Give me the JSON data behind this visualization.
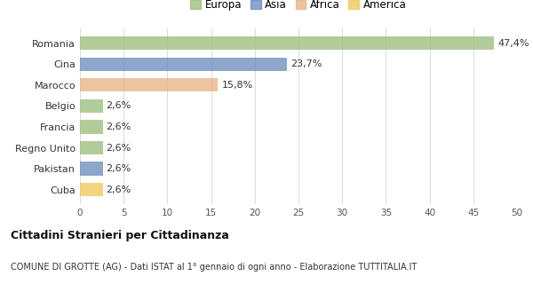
{
  "categories": [
    "Cuba",
    "Pakistan",
    "Regno Unito",
    "Francia",
    "Belgio",
    "Marocco",
    "Cina",
    "Romania"
  ],
  "values": [
    2.6,
    2.6,
    2.6,
    2.6,
    2.6,
    15.8,
    23.7,
    47.4
  ],
  "colors": [
    "#f0c855",
    "#6688bb",
    "#99bb77",
    "#99bb77",
    "#99bb77",
    "#e8b080",
    "#6688bb",
    "#99bb77"
  ],
  "labels": [
    "2,6%",
    "2,6%",
    "2,6%",
    "2,6%",
    "2,6%",
    "15,8%",
    "23,7%",
    "47,4%"
  ],
  "legend_labels": [
    "Europa",
    "Asia",
    "Africa",
    "America"
  ],
  "legend_colors": [
    "#99bb77",
    "#6688bb",
    "#e8b080",
    "#f0c855"
  ],
  "xlim": [
    0,
    50
  ],
  "xticks": [
    0,
    5,
    10,
    15,
    20,
    25,
    30,
    35,
    40,
    45,
    50
  ],
  "title_main": "Cittadini Stranieri per Cittadinanza",
  "title_sub": "COMUNE DI GROTTE (AG) - Dati ISTAT al 1° gennaio di ogni anno - Elaborazione TUTTITALIA.IT",
  "bg_color": "#ffffff",
  "grid_color": "#dddddd",
  "bar_alpha": 0.75,
  "bar_height": 0.65
}
